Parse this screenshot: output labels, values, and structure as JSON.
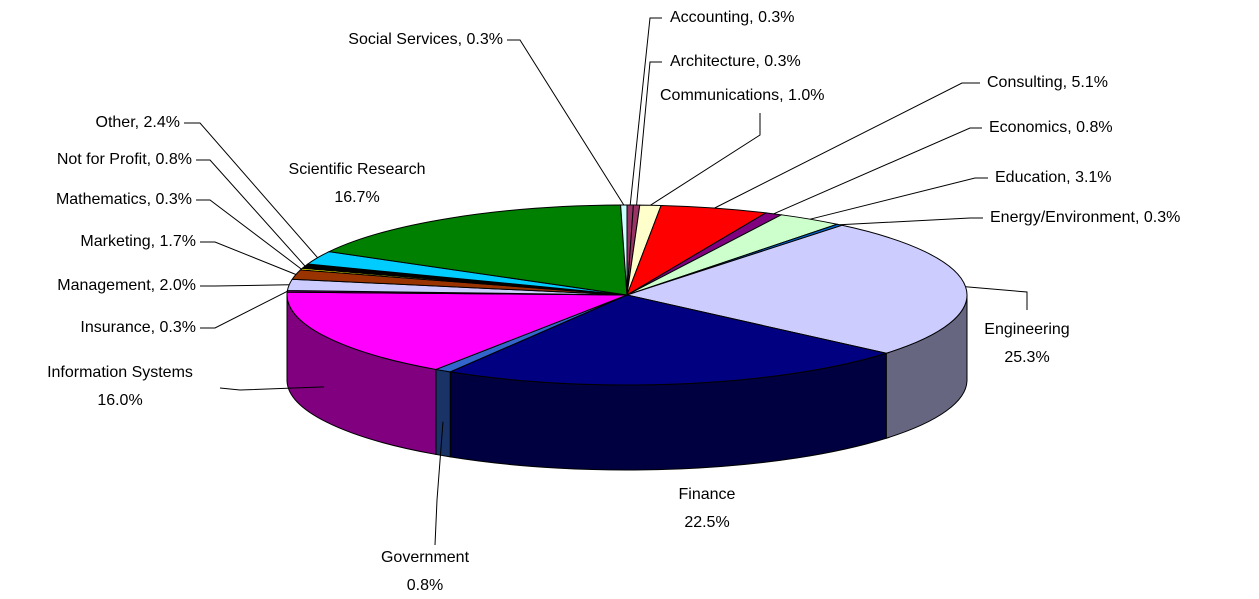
{
  "chart_data": {
    "type": "pie3d",
    "categories": [
      "Accounting",
      "Architecture",
      "Communications",
      "Consulting",
      "Economics",
      "Education",
      "Energy/Environment",
      "Engineering",
      "Finance",
      "Government",
      "Information Systems",
      "Insurance",
      "Management",
      "Marketing",
      "Mathematics",
      "Not for Profit",
      "Other",
      "Scientific Research",
      "Social Services"
    ],
    "values": [
      0.3,
      0.3,
      1.0,
      5.1,
      0.8,
      3.1,
      0.3,
      25.3,
      22.5,
      0.8,
      16.0,
      0.3,
      2.0,
      1.7,
      0.3,
      0.8,
      2.4,
      16.7,
      0.3
    ],
    "value_labels": [
      "0.3%",
      "0.3%",
      "1.0%",
      "5.1%",
      "0.8%",
      "3.1%",
      "0.3%",
      "25.3%",
      "22.5%",
      "0.8%",
      "16.0%",
      "0.3%",
      "2.0%",
      "1.7%",
      "0.3%",
      "0.8%",
      "2.4%",
      "16.7%",
      "0.3%"
    ],
    "label_separator": ", ",
    "colors": [
      "#993366",
      "#993366",
      "#FFFFCC",
      "#FF0000",
      "#800080",
      "#CCFFCC",
      "#0066CC",
      "#CCCCFF",
      "#000080",
      "#3366CC",
      "#FF00FF",
      "#800080",
      "#CCCCFF",
      "#993300",
      "#FFFF00",
      "#000000",
      "#00CCFF",
      "#008000",
      "#CCFFFF"
    ]
  }
}
